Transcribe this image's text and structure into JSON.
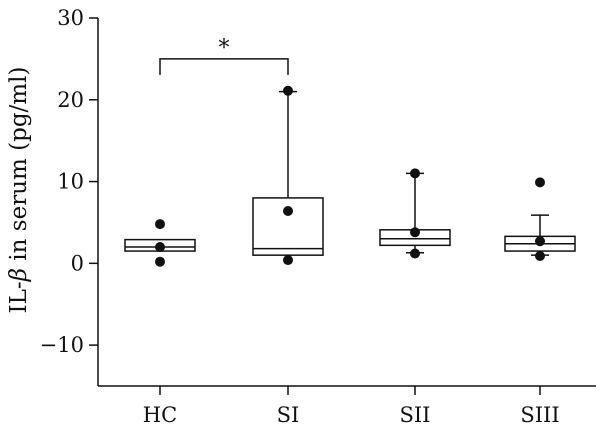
{
  "chart_data": {
    "type": "box",
    "ylabel": "IL-β in serum (pg/ml)",
    "ylabel_parts": {
      "prefix": "IL-",
      "symbol": "β",
      "suffix": " in serum (pg/ml)"
    },
    "ylim": [
      -15,
      30
    ],
    "yticks": [
      -10,
      0,
      10,
      20,
      30
    ],
    "categories": [
      "HC",
      "SI",
      "SII",
      "SIII"
    ],
    "boxes": [
      {
        "category": "HC",
        "q1": 1.5,
        "median": 2.0,
        "q3": 2.9,
        "whisker_low": null,
        "whisker_high": null
      },
      {
        "category": "SI",
        "q1": 1.0,
        "median": 1.8,
        "q3": 8.0,
        "whisker_low": null,
        "whisker_high": 21.0
      },
      {
        "category": "SII",
        "q1": 2.2,
        "median": 3.0,
        "q3": 4.1,
        "whisker_low": 1.3,
        "whisker_high": 11.0
      },
      {
        "category": "SIII",
        "q1": 1.5,
        "median": 2.4,
        "q3": 3.3,
        "whisker_low": 1.0,
        "whisker_high": 5.9
      }
    ],
    "points": [
      {
        "category": "HC",
        "values": [
          4.8,
          2.0,
          0.2
        ]
      },
      {
        "category": "SI",
        "values": [
          21.1,
          6.4,
          0.4
        ]
      },
      {
        "category": "SII",
        "values": [
          11.0,
          3.8,
          1.2
        ]
      },
      {
        "category": "SIII",
        "values": [
          9.9,
          2.7,
          0.9
        ]
      }
    ],
    "significance": [
      {
        "from": "HC",
        "to": "SI",
        "label": "*",
        "y": 25
      }
    ],
    "grid": false,
    "legend": "none"
  }
}
